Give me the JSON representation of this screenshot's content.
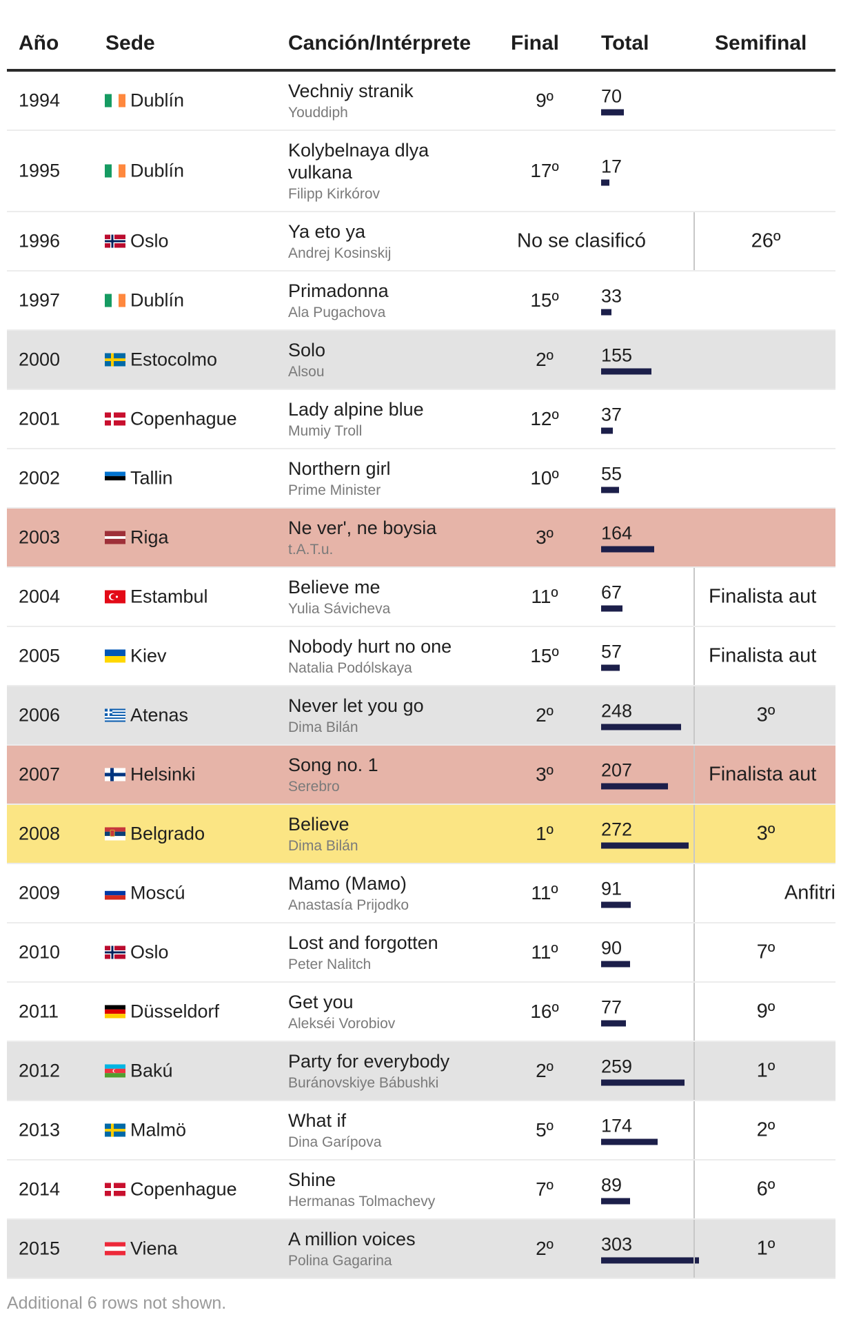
{
  "colors": {
    "bar": "#1c1f4a",
    "highlight_gray": "#e3e3e3",
    "highlight_salmon": "#e6b4a8",
    "highlight_yellow": "#fbe584"
  },
  "headers": {
    "year": "Año",
    "sede": "Sede",
    "song": "Canción/Intérprete",
    "final": "Final",
    "total": "Total",
    "semi": "Semifinal"
  },
  "footer": "Additional 6 rows not shown.",
  "chart_data": {
    "type": "table",
    "bar_max": 303,
    "rows": [
      {
        "year": "1994",
        "flag": "ireland",
        "sede": "Dublín",
        "song": "Vechniy stranik",
        "artist": "Youddiph",
        "final": "9º",
        "total": 70,
        "semi": "",
        "hl": ""
      },
      {
        "year": "1995",
        "flag": "ireland",
        "sede": "Dublín",
        "song": "Kolybelnaya dlya vulkana",
        "artist": "Filipp Kirkórov",
        "final": "17º",
        "total": 17,
        "semi": "",
        "hl": ""
      },
      {
        "year": "1996",
        "flag": "norway",
        "sede": "Oslo",
        "song": "Ya eto ya",
        "artist": "Andrej Kosinskij",
        "final": "No se clasificó",
        "total": null,
        "semi": "26º",
        "hl": ""
      },
      {
        "year": "1997",
        "flag": "ireland",
        "sede": "Dublín",
        "song": "Primadonna",
        "artist": "Ala Pugachova",
        "final": "15º",
        "total": 33,
        "semi": "",
        "hl": ""
      },
      {
        "year": "2000",
        "flag": "sweden",
        "sede": "Estocolmo",
        "song": "Solo",
        "artist": "Alsou",
        "final": "2º",
        "total": 155,
        "semi": "",
        "hl": "gray"
      },
      {
        "year": "2001",
        "flag": "denmark",
        "sede": "Copenhague",
        "song": "Lady alpine blue",
        "artist": "Mumiy Troll",
        "final": "12º",
        "total": 37,
        "semi": "",
        "hl": ""
      },
      {
        "year": "2002",
        "flag": "estonia",
        "sede": "Tallin",
        "song": "Northern girl",
        "artist": "Prime Minister",
        "final": "10º",
        "total": 55,
        "semi": "",
        "hl": ""
      },
      {
        "year": "2003",
        "flag": "latvia",
        "sede": "Riga",
        "song": "Ne ver', ne boysia",
        "artist": "t.A.T.u.",
        "final": "3º",
        "total": 164,
        "semi": "",
        "hl": "salmon"
      },
      {
        "year": "2004",
        "flag": "turkey",
        "sede": "Estambul",
        "song": "Believe me",
        "artist": "Yulia Sávicheva",
        "final": "11º",
        "total": 67,
        "semi": "Finalista aut",
        "hl": ""
      },
      {
        "year": "2005",
        "flag": "ukraine",
        "sede": "Kiev",
        "song": "Nobody hurt no one",
        "artist": "Natalia Podólskaya",
        "final": "15º",
        "total": 57,
        "semi": "Finalista aut",
        "hl": ""
      },
      {
        "year": "2006",
        "flag": "greece",
        "sede": "Atenas",
        "song": "Never let you go",
        "artist": "Dima Bilán",
        "final": "2º",
        "total": 248,
        "semi": "3º",
        "hl": "gray"
      },
      {
        "year": "2007",
        "flag": "finland",
        "sede": "Helsinki",
        "song": "Song no. 1",
        "artist": "Serebro",
        "final": "3º",
        "total": 207,
        "semi": "Finalista aut",
        "hl": "salmon"
      },
      {
        "year": "2008",
        "flag": "serbia",
        "sede": "Belgrado",
        "song": "Believe",
        "artist": "Dima Bilán",
        "final": "1º",
        "total": 272,
        "semi": "3º",
        "hl": "yellow"
      },
      {
        "year": "2009",
        "flag": "russia",
        "sede": "Moscú",
        "song": "Mamo (Мамо)",
        "artist": "Anastasía Prijodko",
        "final": "11º",
        "total": 91,
        "semi": "Anfitri",
        "hl": ""
      },
      {
        "year": "2010",
        "flag": "norway",
        "sede": "Oslo",
        "song": "Lost and forgotten",
        "artist": "Peter Nalitch",
        "final": "11º",
        "total": 90,
        "semi": "7º",
        "hl": ""
      },
      {
        "year": "2011",
        "flag": "germany",
        "sede": "Düsseldorf",
        "song": "Get you",
        "artist": "Alekséi Vorobiov",
        "final": "16º",
        "total": 77,
        "semi": "9º",
        "hl": ""
      },
      {
        "year": "2012",
        "flag": "azerbaijan",
        "sede": "Bakú",
        "song": "Party for everybody",
        "artist": "Buránovskiye Bábushki",
        "final": "2º",
        "total": 259,
        "semi": "1º",
        "hl": "gray"
      },
      {
        "year": "2013",
        "flag": "sweden",
        "sede": "Malmö",
        "song": "What if",
        "artist": "Dina Garípova",
        "final": "5º",
        "total": 174,
        "semi": "2º",
        "hl": ""
      },
      {
        "year": "2014",
        "flag": "denmark",
        "sede": "Copenhague",
        "song": "Shine",
        "artist": "Hermanas Tolmachevy",
        "final": "7º",
        "total": 89,
        "semi": "6º",
        "hl": ""
      },
      {
        "year": "2015",
        "flag": "austria",
        "sede": "Viena",
        "song": "A million voices",
        "artist": "Polina Gagarina",
        "final": "2º",
        "total": 303,
        "semi": "1º",
        "hl": "gray"
      }
    ]
  }
}
